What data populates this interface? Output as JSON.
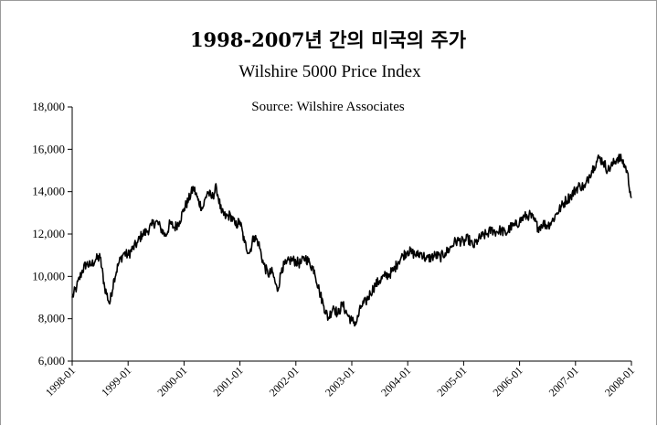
{
  "chart_data": {
    "type": "line",
    "title": "1998-2007년 간의 미국의 주가",
    "subtitle": "Wilshire  5000 Price Index",
    "source": "Source: Wilshire Associates",
    "xlabel": "",
    "ylabel": "",
    "ylim": [
      6000,
      18000
    ],
    "yticks": [
      6000,
      8000,
      10000,
      12000,
      14000,
      16000,
      18000
    ],
    "ytick_labels": [
      "6,000",
      "8,000",
      "10,000",
      "12,000",
      "14,000",
      "16,000",
      "18,000"
    ],
    "xticks": [
      "1998-01",
      "1999-01",
      "2000-01",
      "2001-01",
      "2002-01",
      "2003-01",
      "2004-01",
      "2005-01",
      "2006-01",
      "2007-01",
      "2008-01"
    ],
    "grid": false,
    "colors": {
      "line": "#000000",
      "axis": "#000000"
    },
    "series": [
      {
        "name": "Wilshire 5000",
        "x": [
          1998.0,
          1998.08,
          1998.17,
          1998.25,
          1998.33,
          1998.42,
          1998.5,
          1998.58,
          1998.67,
          1998.75,
          1998.83,
          1998.92,
          1999.0,
          1999.08,
          1999.17,
          1999.25,
          1999.33,
          1999.42,
          1999.5,
          1999.58,
          1999.67,
          1999.75,
          1999.83,
          1999.92,
          2000.0,
          2000.08,
          2000.17,
          2000.25,
          2000.33,
          2000.42,
          2000.5,
          2000.58,
          2000.67,
          2000.75,
          2000.83,
          2000.92,
          2001.0,
          2001.08,
          2001.17,
          2001.25,
          2001.33,
          2001.42,
          2001.5,
          2001.58,
          2001.67,
          2001.75,
          2001.83,
          2001.92,
          2002.0,
          2002.08,
          2002.17,
          2002.25,
          2002.33,
          2002.42,
          2002.5,
          2002.58,
          2002.67,
          2002.75,
          2002.83,
          2002.92,
          2003.0,
          2003.08,
          2003.17,
          2003.25,
          2003.33,
          2003.42,
          2003.5,
          2003.58,
          2003.67,
          2003.75,
          2003.83,
          2003.92,
          2004.0,
          2004.08,
          2004.17,
          2004.25,
          2004.33,
          2004.42,
          2004.5,
          2004.58,
          2004.67,
          2004.75,
          2004.83,
          2004.92,
          2005.0,
          2005.08,
          2005.17,
          2005.25,
          2005.33,
          2005.42,
          2005.5,
          2005.58,
          2005.67,
          2005.75,
          2005.83,
          2005.92,
          2006.0,
          2006.08,
          2006.17,
          2006.25,
          2006.33,
          2006.42,
          2006.5,
          2006.58,
          2006.67,
          2006.75,
          2006.83,
          2006.92,
          2007.0,
          2007.08,
          2007.17,
          2007.25,
          2007.33,
          2007.42,
          2007.5,
          2007.58,
          2007.67,
          2007.75,
          2007.83,
          2007.92,
          2008.0
        ],
        "values": [
          9000,
          9500,
          10200,
          10600,
          10500,
          10800,
          10900,
          9500,
          8700,
          9900,
          10600,
          11100,
          11000,
          11300,
          11600,
          12000,
          12100,
          12400,
          12600,
          12300,
          11900,
          12500,
          12300,
          12600,
          13200,
          13600,
          14200,
          13600,
          13200,
          14000,
          13700,
          14200,
          13000,
          12800,
          12900,
          12400,
          12600,
          11600,
          11100,
          11900,
          11600,
          10600,
          10100,
          10200,
          9300,
          10400,
          10600,
          10800,
          10700,
          10600,
          10900,
          10600,
          10300,
          9300,
          8600,
          8000,
          8600,
          8200,
          8700,
          8200,
          7900,
          7800,
          8600,
          8800,
          9200,
          9600,
          9800,
          10000,
          10100,
          10300,
          10700,
          11000,
          11200,
          11100,
          11000,
          11100,
          10800,
          10900,
          11000,
          10900,
          11100,
          11300,
          11600,
          11700,
          11600,
          11800,
          11400,
          11700,
          11900,
          12000,
          12200,
          12100,
          12200,
          12000,
          12300,
          12400,
          12600,
          12800,
          12900,
          12700,
          12300,
          12500,
          12400,
          12600,
          13000,
          13300,
          13600,
          13800,
          14100,
          14300,
          14200,
          14800,
          15200,
          15600,
          15400,
          15000,
          15300,
          15600,
          15500,
          15000,
          13700
        ]
      }
    ]
  }
}
